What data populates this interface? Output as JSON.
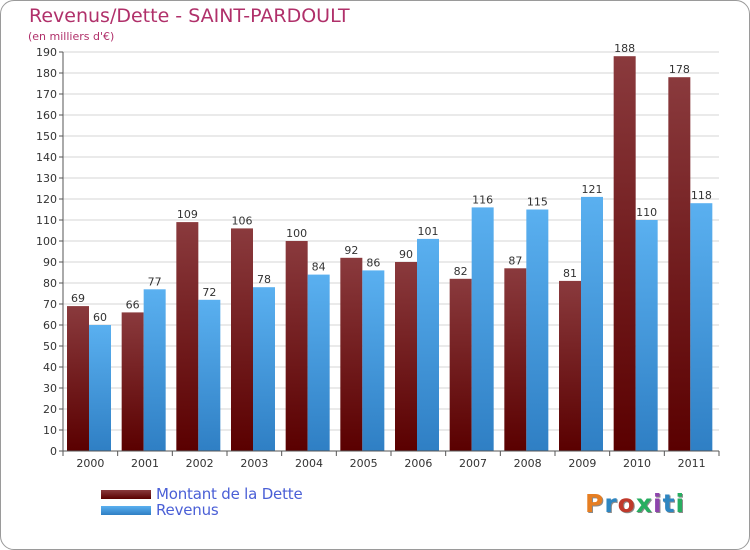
{
  "title": "Revenus/Dette - SAINT-PARDOULT",
  "subtitle": "(en milliers d'€)",
  "legend": [
    {
      "label": "Montant de la Dette",
      "color": "#6b1012"
    },
    {
      "label": "Revenus",
      "color": "#4aa3e8"
    }
  ],
  "logo": {
    "text": "Proxiti",
    "colors": [
      "#e67e22",
      "#2e86c1",
      "#c0392b",
      "#27ae60",
      "#8e44ad",
      "#2e86c1",
      "#27ae60"
    ]
  },
  "chart_data": {
    "type": "bar",
    "title": "Revenus/Dette - SAINT-PARDOULT",
    "subtitle": "(en milliers d'€)",
    "categories": [
      "2000",
      "2001",
      "2002",
      "2003",
      "2004",
      "2005",
      "2006",
      "2007",
      "2008",
      "2009",
      "2010",
      "2011"
    ],
    "series": [
      {
        "name": "Montant de la Dette",
        "color": "#6b1012",
        "values": [
          69,
          66,
          109,
          106,
          100,
          92,
          90,
          82,
          87,
          81,
          188,
          178
        ]
      },
      {
        "name": "Revenus",
        "color": "#4aa3e8",
        "values": [
          60,
          77,
          72,
          78,
          84,
          86,
          101,
          116,
          115,
          121,
          110,
          118
        ]
      }
    ],
    "ylim": [
      0,
      190
    ],
    "ytick_step": 10,
    "grid": true,
    "legend_position": "bottom-left"
  }
}
